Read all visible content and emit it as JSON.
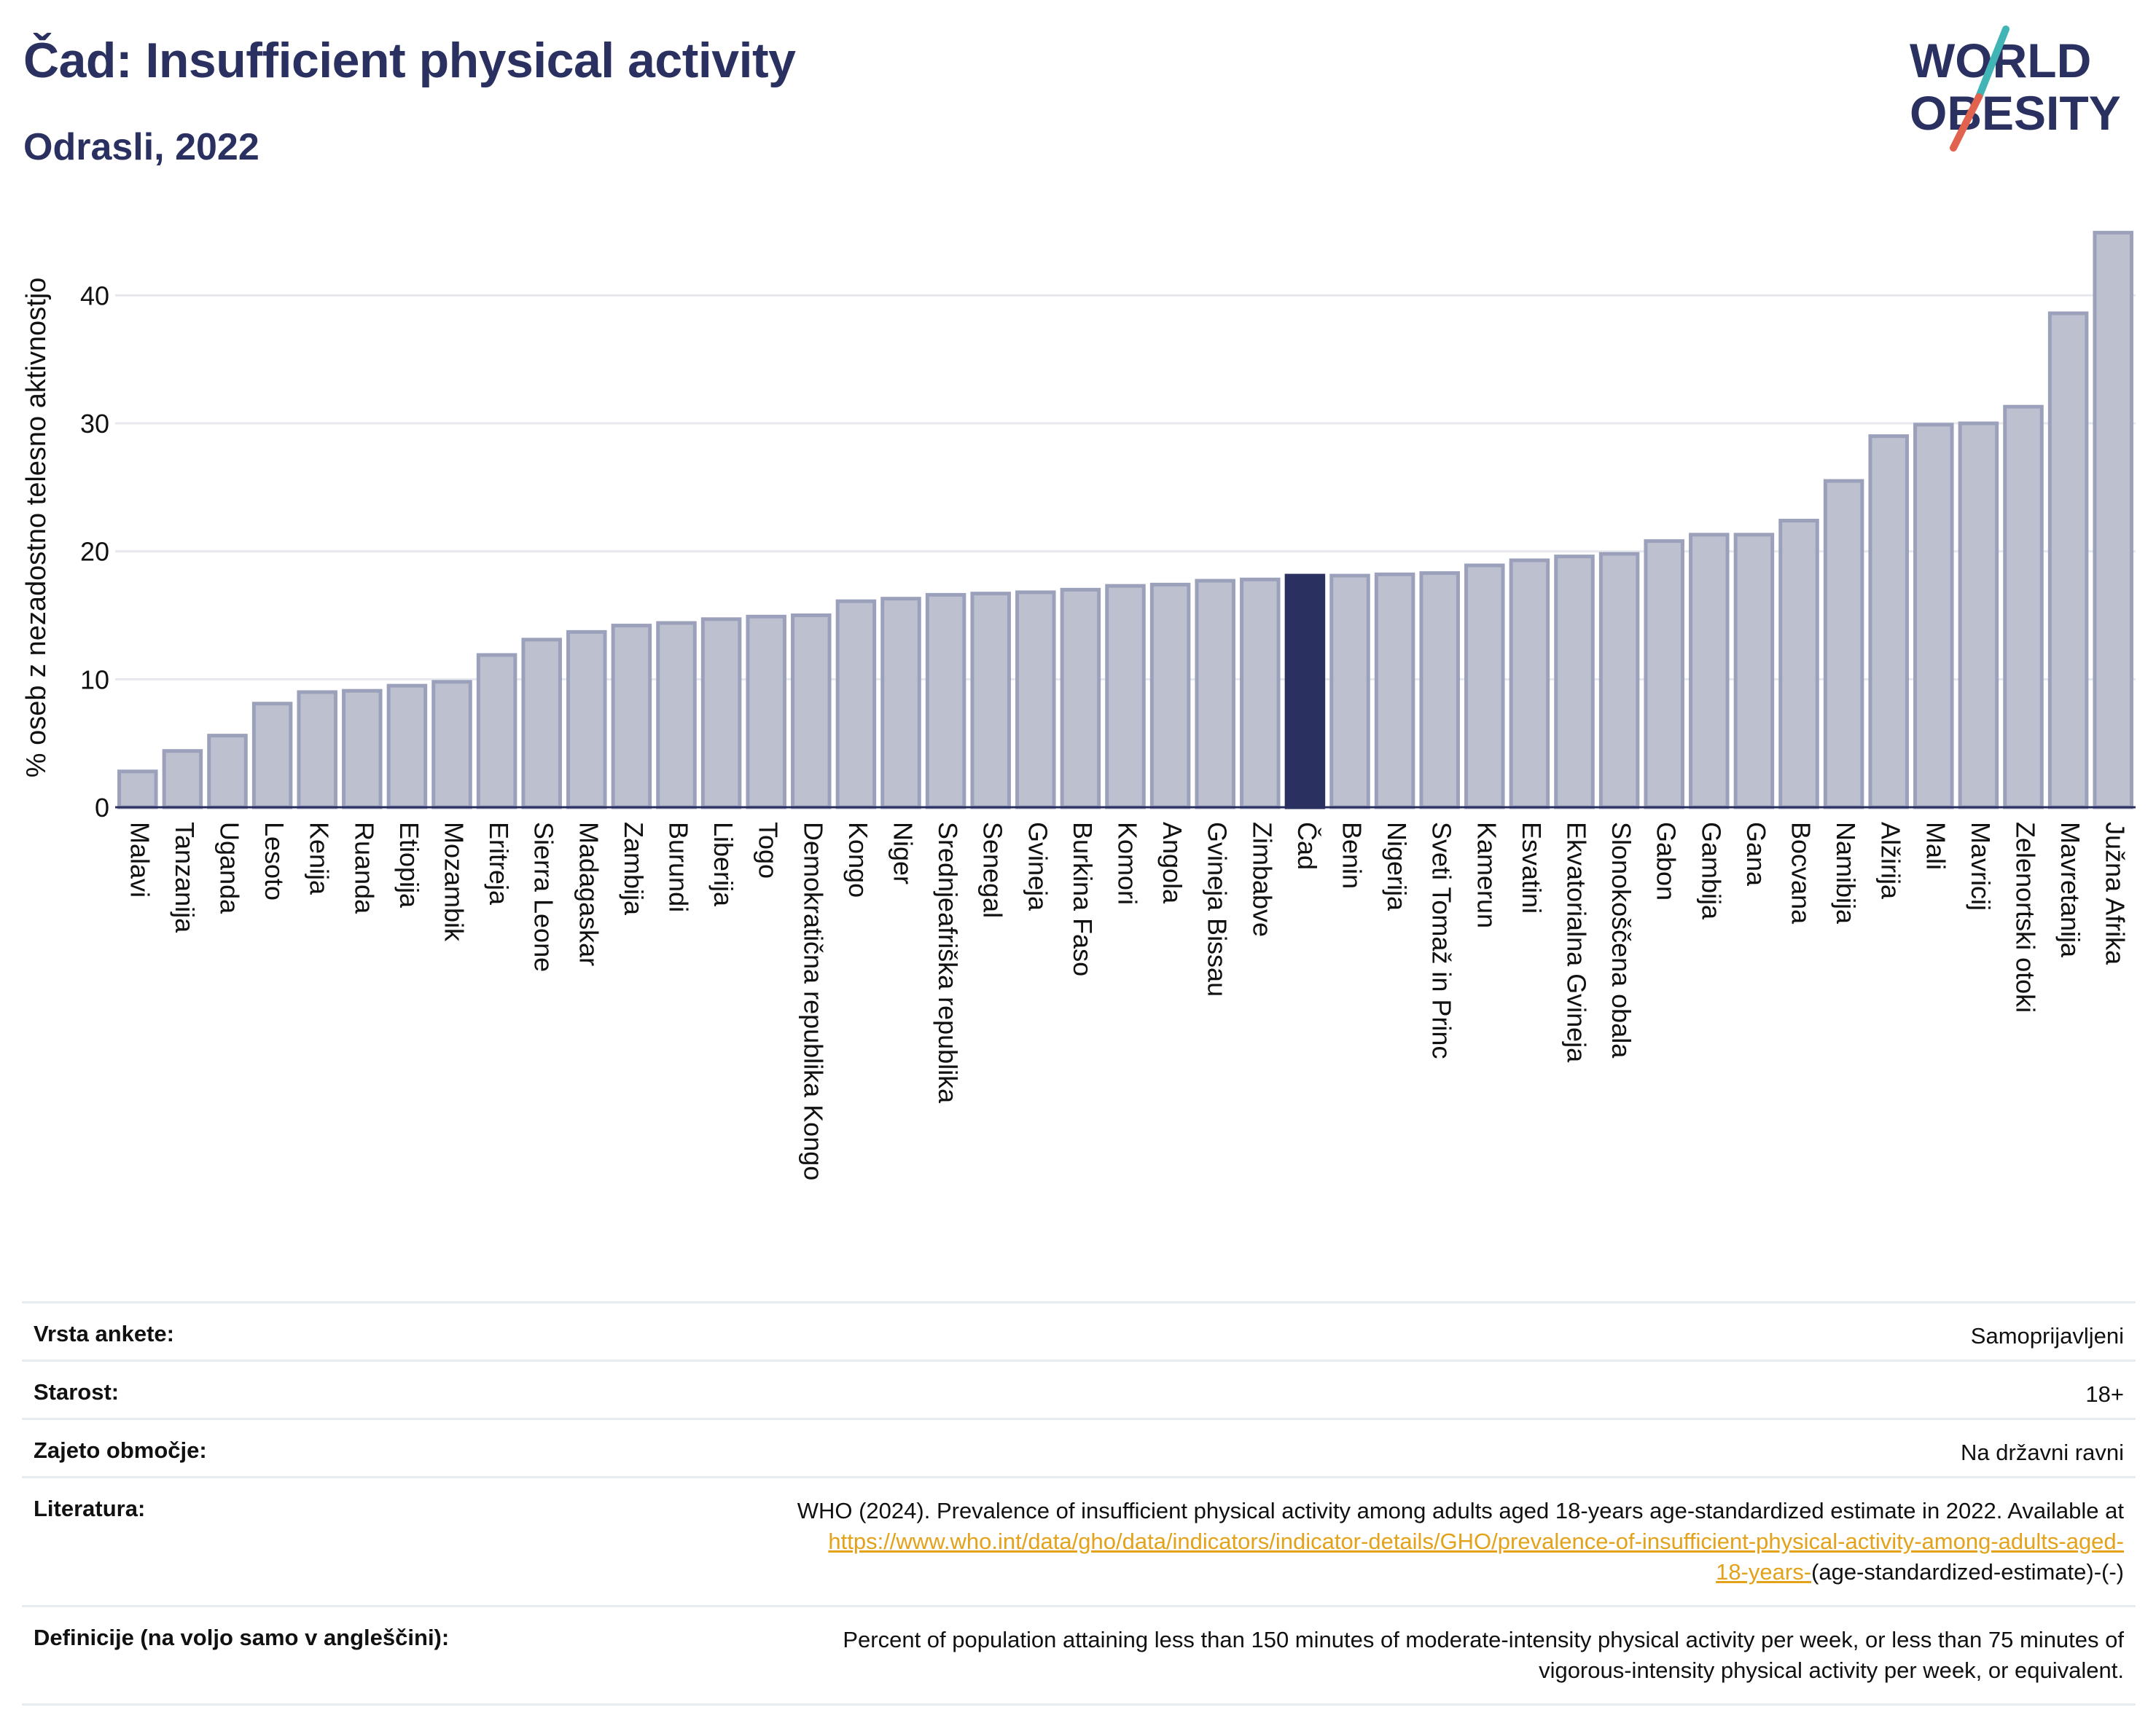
{
  "header": {
    "title": "Čad: Insufficient physical activity",
    "subtitle": "Odrasli, 2022"
  },
  "logo": {
    "line1": "WORLD",
    "line2": "OBESITY",
    "slash_colors": [
      "#41b5b5",
      "#e1634f"
    ],
    "text_color": "#2a3160"
  },
  "colors": {
    "bar_default": "#bcc0cf",
    "bar_default_stroke": "#9ca1bb",
    "bar_highlight": "#2a3160",
    "grid": "#e6e8ee",
    "axis": "#2a3160"
  },
  "chart_data": {
    "type": "bar",
    "ylabel": "% oseb z nezadostno telesno aktivnostjo",
    "xlabel": "",
    "ylim": [
      0,
      46
    ],
    "yticks": [
      0,
      10,
      20,
      30,
      40
    ],
    "grid": true,
    "highlight": "Čad",
    "categories": [
      "Malavi",
      "Tanzanija",
      "Uganda",
      "Lesoto",
      "Kenija",
      "Ruanda",
      "Etiopija",
      "Mozambik",
      "Eritreja",
      "Sierra Leone",
      "Madagaskar",
      "Zambija",
      "Burundi",
      "Liberija",
      "Togo",
      "Demokratična republika Kongo",
      "Kongo",
      "Niger",
      "Srednjeafriška republika",
      "Senegal",
      "Gvineja",
      "Burkina Faso",
      "Komori",
      "Angola",
      "Gvineja Bissau",
      "Zimbabve",
      "Čad",
      "Benin",
      "Nigerija",
      "Sveti Tomaž in Princ",
      "Kamerun",
      "Esvatini",
      "Ekvatorialna Gvineja",
      "Slonokoščena obala",
      "Gabon",
      "Gambija",
      "Gana",
      "Bocvana",
      "Namibija",
      "Alžirija",
      "Mali",
      "Mavricij",
      "Zelenortski otoki",
      "Mavretanija",
      "Južna Afrika"
    ],
    "values": [
      2.8,
      4.4,
      5.6,
      8.1,
      9.0,
      9.1,
      9.5,
      9.8,
      11.9,
      13.1,
      13.7,
      14.2,
      14.4,
      14.7,
      14.9,
      15.0,
      16.1,
      16.3,
      16.6,
      16.7,
      16.8,
      17.0,
      17.3,
      17.4,
      17.7,
      17.8,
      18.1,
      18.1,
      18.2,
      18.3,
      18.9,
      19.3,
      19.6,
      19.8,
      20.8,
      21.3,
      21.3,
      22.4,
      25.5,
      29.0,
      29.9,
      30.0,
      31.3,
      38.6,
      44.9
    ]
  },
  "meta": {
    "rows": [
      {
        "key": "Vrsta ankete:",
        "value": "Samoprijavljeni"
      },
      {
        "key": "Starost:",
        "value": "18+"
      },
      {
        "key": "Zajeto območje:",
        "value": "Na državni ravni"
      }
    ],
    "literature": {
      "key": "Literatura:",
      "text": "WHO (2024). Prevalence of insufficient physical activity among adults aged 18-years age-standardized estimate in 2022. Available at",
      "link_line1": "https://www.who.int/data/gho/data/indicators/indicator-details/GHO/prevalence-of-insufficient-physical-activity-among-adults-aged-",
      "link_line2": "18-years-",
      "suffix": "(age-standardized-estimate)-(-)"
    },
    "definitions": {
      "key": "Definicije (na voljo samo v angleščini):",
      "line1": "Percent of population attaining less than 150 minutes of moderate-intensity physical activity per week, or less than 75 minutes of",
      "line2": "vigorous-intensity physical activity per week, or equivalent."
    }
  }
}
